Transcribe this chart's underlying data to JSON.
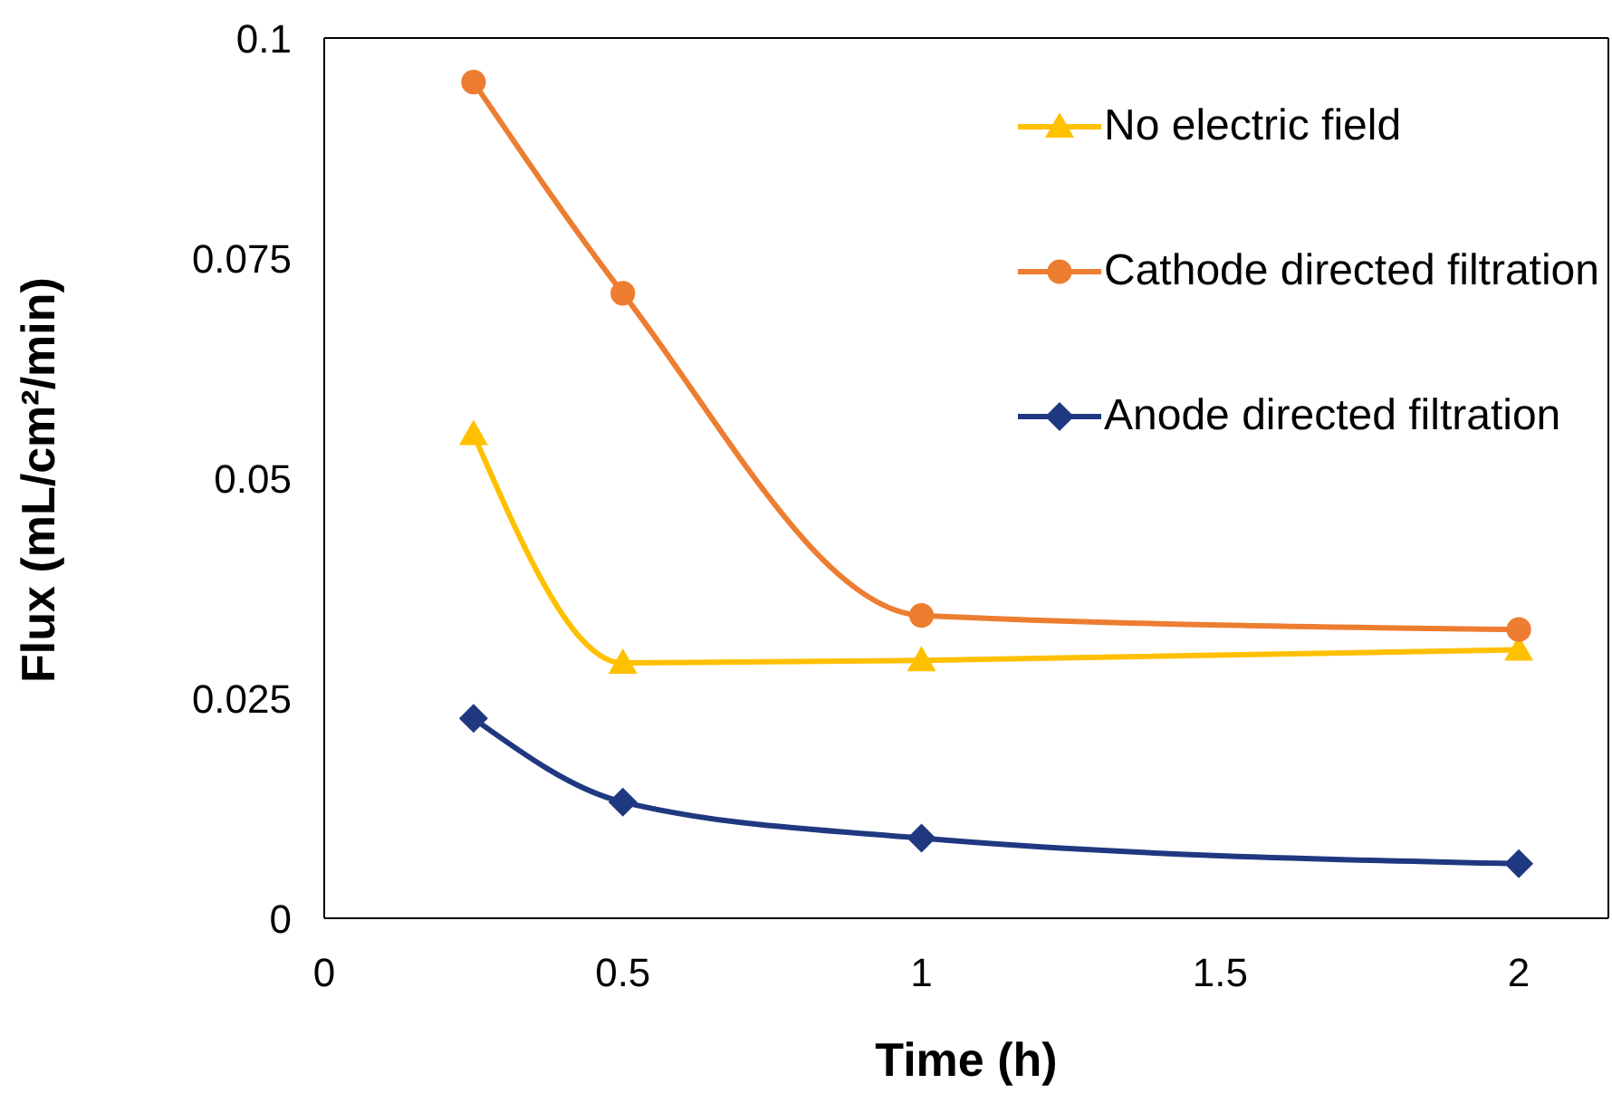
{
  "chart_data": {
    "type": "line",
    "xlabel": "Time (h)",
    "ylabel": "Flux  (mL/cm²/min)",
    "x": [
      0.25,
      0.5,
      1,
      2
    ],
    "series": [
      {
        "name": "No electric field",
        "color": "#ffc000",
        "marker": "triangle",
        "values": [
          0.055,
          0.029,
          0.0293,
          0.0305
        ]
      },
      {
        "name": "Cathode directed filtration",
        "color": "#ed7d31",
        "marker": "circle",
        "values": [
          0.095,
          0.071,
          0.0344,
          0.0328
        ]
      },
      {
        "name": "Anode directed filtration",
        "color": "#1f3880",
        "marker": "diamond",
        "values": [
          0.0227,
          0.0132,
          0.0091,
          0.0062
        ]
      }
    ],
    "xlim": [
      0,
      2.15
    ],
    "xticks": [
      0,
      0.5,
      1,
      1.5,
      2
    ],
    "ylim": [
      0,
      0.1
    ],
    "yticks": [
      0,
      0.025,
      0.05,
      0.075,
      0.1
    ],
    "grid": false,
    "legend": "top right",
    "line_style": "solid"
  }
}
